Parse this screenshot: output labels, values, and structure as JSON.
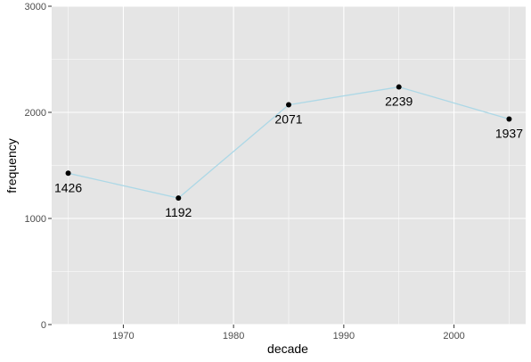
{
  "chart_data": {
    "type": "line",
    "title": "",
    "xlabel": "decade",
    "ylabel": "frequency",
    "x": [
      1965,
      1975,
      1985,
      1995,
      2005
    ],
    "series": [
      {
        "values": [
          1426,
          1192,
          2071,
          2239,
          1937
        ],
        "labels": [
          "1426",
          "1192",
          "2071",
          "2239",
          "1937"
        ]
      }
    ],
    "xlim": [
      1963.5,
      2006.5
    ],
    "ylim": [
      0,
      3000
    ],
    "x_ticks": [
      1970,
      1980,
      1990,
      2000
    ],
    "x_tick_labels": [
      "1970",
      "1980",
      "1990",
      "2000"
    ],
    "y_ticks": [
      0,
      1000,
      2000,
      3000
    ],
    "y_tick_labels": [
      "0",
      "1000",
      "2000",
      "3000"
    ],
    "grid": true,
    "legend": "none",
    "colors": {
      "panel": "#e5e5e5",
      "grid_major": "#ffffff",
      "line": "#add8e6",
      "point": "#000000",
      "tick": "#333333"
    }
  }
}
